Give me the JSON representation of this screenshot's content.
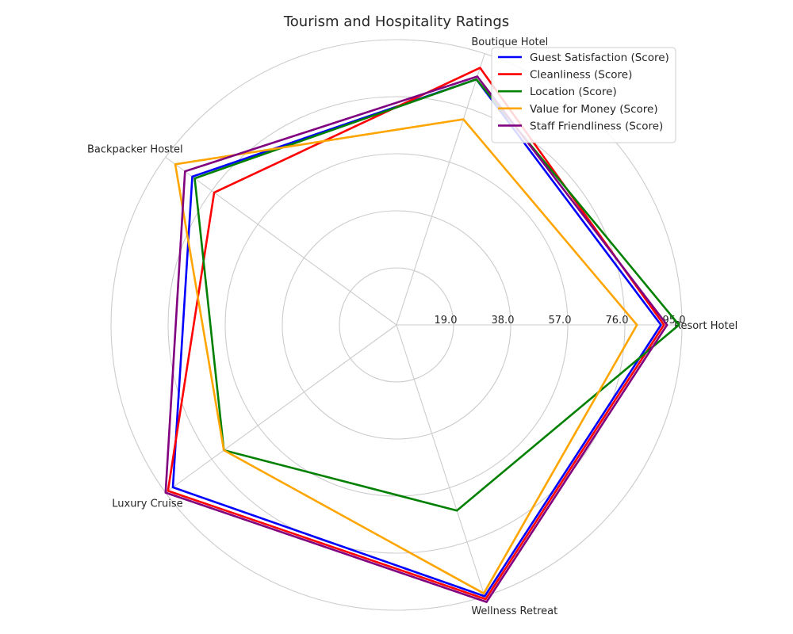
{
  "chart_data": {
    "type": "radar",
    "title": "Tourism and Hospitality Ratings",
    "categories": [
      "Resort Hotel",
      "Boutique Hotel",
      "Backpacker Hostel",
      "Luxury Cruise",
      "Wellness Retreat"
    ],
    "radial_ticks": [
      "19.0",
      "38.0",
      "57.0",
      "76.0",
      "95.0"
    ],
    "rlim": [
      0,
      95
    ],
    "grid": true,
    "legend_position": "top-right",
    "series": [
      {
        "name": "Guest Satisfaction (Score)",
        "color": "#0000ff",
        "values": [
          88,
          86,
          84,
          92,
          95
        ]
      },
      {
        "name": "Cleanliness (Score)",
        "color": "#ff0000",
        "values": [
          89,
          90,
          75,
          94,
          96
        ]
      },
      {
        "name": "Location (Score)",
        "color": "#008000",
        "values": [
          94,
          86,
          83,
          71,
          65
        ]
      },
      {
        "name": "Value for Money (Score)",
        "color": "#ffa500",
        "values": [
          80,
          72,
          91,
          71,
          94
        ]
      },
      {
        "name": "Staff Friendliness (Score)",
        "color": "#800080",
        "values": [
          90,
          87,
          87,
          95,
          97
        ]
      }
    ]
  }
}
